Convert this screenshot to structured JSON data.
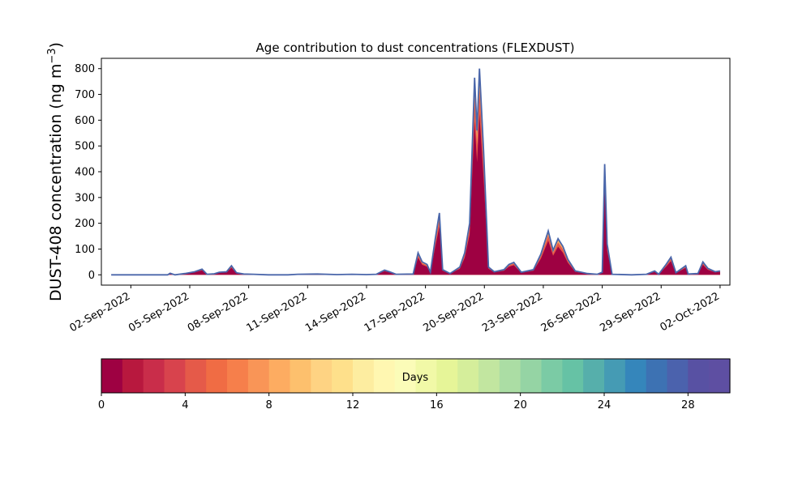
{
  "chart_data": {
    "type": "area",
    "title": "Age contribution to dust concentrations (FLEXDUST)",
    "ylabel": "DUST-408 concentration (ng m",
    "ylabel_exponent": "−3",
    "ylabel_close": ")",
    "xlabel": "",
    "x_start": "2022-09-01",
    "x_end": "2022-10-01",
    "xlim": [
      "2022-08-31T12:00",
      "2022-10-02T12:00"
    ],
    "ylim": [
      -40,
      840
    ],
    "yticks": [
      0,
      100,
      200,
      300,
      400,
      500,
      600,
      700,
      800
    ],
    "xticks": [
      "2022-09-02",
      "2022-09-05",
      "2022-09-08",
      "2022-09-11",
      "2022-09-14",
      "2022-09-17",
      "2022-09-20",
      "2022-09-23",
      "2022-09-26",
      "2022-09-29",
      "2022-10-02"
    ],
    "xtick_labels": [
      "02-Sep-2022",
      "05-Sep-2022",
      "08-Sep-2022",
      "11-Sep-2022",
      "14-Sep-2022",
      "17-Sep-2022",
      "20-Sep-2022",
      "23-Sep-2022",
      "26-Sep-2022",
      "29-Sep-2022",
      "02-Oct-2022"
    ],
    "grid": false,
    "series_note": "stacked by age bin 0–30 days",
    "total": [
      {
        "x": "2022-09-01T00:00",
        "y": 0
      },
      {
        "x": "2022-09-02T12:00",
        "y": 0
      },
      {
        "x": "2022-09-03T12:00",
        "y": 0
      },
      {
        "x": "2022-09-03T21:00",
        "y": 0
      },
      {
        "x": "2022-09-04T00:00",
        "y": 6
      },
      {
        "x": "2022-09-04T06:00",
        "y": 0
      },
      {
        "x": "2022-09-04T18:00",
        "y": 5
      },
      {
        "x": "2022-09-05T06:00",
        "y": 12
      },
      {
        "x": "2022-09-05T15:00",
        "y": 22
      },
      {
        "x": "2022-09-05T21:00",
        "y": 2
      },
      {
        "x": "2022-09-06T06:00",
        "y": 4
      },
      {
        "x": "2022-09-06T12:00",
        "y": 10
      },
      {
        "x": "2022-09-06T21:00",
        "y": 12
      },
      {
        "x": "2022-09-07T03:00",
        "y": 35
      },
      {
        "x": "2022-09-07T09:00",
        "y": 8
      },
      {
        "x": "2022-09-07T18:00",
        "y": 3
      },
      {
        "x": "2022-09-08T06:00",
        "y": 2
      },
      {
        "x": "2022-09-09T00:00",
        "y": 0
      },
      {
        "x": "2022-09-10T00:00",
        "y": 0
      },
      {
        "x": "2022-09-10T12:00",
        "y": 2
      },
      {
        "x": "2022-09-11T12:00",
        "y": 3
      },
      {
        "x": "2022-09-12T12:00",
        "y": 1
      },
      {
        "x": "2022-09-13T06:00",
        "y": 2
      },
      {
        "x": "2022-09-14T00:00",
        "y": 1
      },
      {
        "x": "2022-09-14T12:00",
        "y": 2
      },
      {
        "x": "2022-09-14T22:00",
        "y": 18
      },
      {
        "x": "2022-09-15T04:00",
        "y": 12
      },
      {
        "x": "2022-09-15T12:00",
        "y": 2
      },
      {
        "x": "2022-09-16T09:00",
        "y": 3
      },
      {
        "x": "2022-09-16T15:00",
        "y": 85
      },
      {
        "x": "2022-09-16T20:00",
        "y": 50
      },
      {
        "x": "2022-09-17T02:00",
        "y": 40
      },
      {
        "x": "2022-09-17T06:00",
        "y": 10
      },
      {
        "x": "2022-09-17T12:00",
        "y": 140
      },
      {
        "x": "2022-09-17T17:00",
        "y": 240
      },
      {
        "x": "2022-09-17T21:00",
        "y": 20
      },
      {
        "x": "2022-09-18T06:00",
        "y": 5
      },
      {
        "x": "2022-09-18T18:00",
        "y": 30
      },
      {
        "x": "2022-09-19T00:00",
        "y": 85
      },
      {
        "x": "2022-09-19T06:00",
        "y": 200
      },
      {
        "x": "2022-09-19T12:00",
        "y": 765
      },
      {
        "x": "2022-09-19T15:00",
        "y": 560
      },
      {
        "x": "2022-09-19T18:00",
        "y": 800
      },
      {
        "x": "2022-09-19T23:00",
        "y": 480
      },
      {
        "x": "2022-09-20T05:00",
        "y": 30
      },
      {
        "x": "2022-09-20T12:00",
        "y": 12
      },
      {
        "x": "2022-09-21T00:00",
        "y": 20
      },
      {
        "x": "2022-09-21T06:00",
        "y": 40
      },
      {
        "x": "2022-09-21T12:00",
        "y": 48
      },
      {
        "x": "2022-09-21T21:00",
        "y": 10
      },
      {
        "x": "2022-09-22T12:00",
        "y": 20
      },
      {
        "x": "2022-09-22T21:00",
        "y": 80
      },
      {
        "x": "2022-09-23T06:00",
        "y": 170
      },
      {
        "x": "2022-09-23T12:00",
        "y": 95
      },
      {
        "x": "2022-09-23T18:00",
        "y": 140
      },
      {
        "x": "2022-09-24T00:00",
        "y": 110
      },
      {
        "x": "2022-09-24T06:00",
        "y": 60
      },
      {
        "x": "2022-09-24T15:00",
        "y": 15
      },
      {
        "x": "2022-09-25T06:00",
        "y": 5
      },
      {
        "x": "2022-09-25T18:00",
        "y": 2
      },
      {
        "x": "2022-09-26T00:00",
        "y": 10
      },
      {
        "x": "2022-09-26T03:00",
        "y": 430
      },
      {
        "x": "2022-09-26T06:00",
        "y": 120
      },
      {
        "x": "2022-09-26T12:00",
        "y": 2
      },
      {
        "x": "2022-09-27T12:00",
        "y": 0
      },
      {
        "x": "2022-09-28T06:00",
        "y": 2
      },
      {
        "x": "2022-09-28T16:00",
        "y": 15
      },
      {
        "x": "2022-09-28T21:00",
        "y": 2
      },
      {
        "x": "2022-09-29T06:00",
        "y": 40
      },
      {
        "x": "2022-09-29T12:00",
        "y": 68
      },
      {
        "x": "2022-09-29T18:00",
        "y": 8
      },
      {
        "x": "2022-09-30T06:00",
        "y": 35
      },
      {
        "x": "2022-09-30T09:00",
        "y": 3
      },
      {
        "x": "2022-09-30T21:00",
        "y": 5
      },
      {
        "x": "2022-10-01T03:00",
        "y": 50
      },
      {
        "x": "2022-10-01T09:00",
        "y": 25
      },
      {
        "x": "2022-10-01T18:00",
        "y": 12
      },
      {
        "x": "2022-10-02T00:00",
        "y": 15
      }
    ],
    "youngest_fraction": 0.78,
    "colorbar": {
      "label": "Days",
      "range": [
        0,
        30
      ],
      "ticks": [
        0,
        4,
        8,
        12,
        16,
        20,
        24,
        28
      ],
      "colors": [
        "#9e0142",
        "#b8183e",
        "#c92d4a",
        "#d8434d",
        "#e55a49",
        "#f06c44",
        "#f67f4b",
        "#f99557",
        "#fdac61",
        "#fdc06d",
        "#fed383",
        "#fee08b",
        "#fdeda0",
        "#fff7b1",
        "#fbfcb8",
        "#f1f9a7",
        "#e6f598",
        "#d5ee9b",
        "#c2e6a0",
        "#abdda4",
        "#95d4a4",
        "#7bcba5",
        "#66c2a5",
        "#56afab",
        "#459bb4",
        "#3586bb",
        "#3d72b3",
        "#4b62ad",
        "#5851a3",
        "#5e4fa2"
      ]
    }
  }
}
